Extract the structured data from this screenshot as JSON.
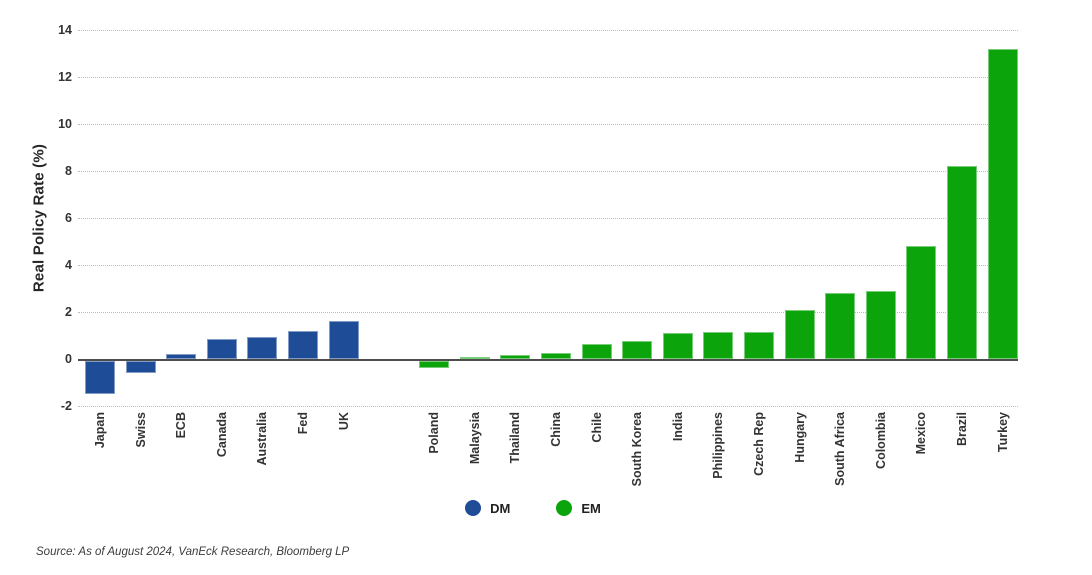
{
  "figure": {
    "y_axis_title": "Real Policy Rate (%)",
    "source_note": "Source: As of August 2024, VanEck Research, Bloomberg LP"
  },
  "legend": {
    "items": [
      {
        "label": "DM",
        "color": "#1e4c96"
      },
      {
        "label": "EM",
        "color": "#0ba40b"
      }
    ]
  },
  "chart_data": {
    "type": "bar",
    "title": "",
    "xlabel": "",
    "ylabel": "Real Policy Rate (%)",
    "ylim": [
      -2,
      14
    ],
    "yticks": [
      14,
      12,
      10,
      8,
      6,
      4,
      2,
      0,
      -2
    ],
    "grid": "horizontal-dotted",
    "legend_position": "bottom-center",
    "series": [
      {
        "name": "DM",
        "color": "#1e4c96",
        "categories": [
          "Japan",
          "Swiss",
          "ECB",
          "Canada",
          "Australia",
          "Fed",
          "UK"
        ],
        "values": [
          -1.4,
          -0.5,
          0.2,
          0.85,
          0.95,
          1.2,
          1.6
        ]
      },
      {
        "name": "EM",
        "color": "#0ba40b",
        "categories": [
          "Poland",
          "Malaysia",
          "Thailand",
          "China",
          "Chile",
          "South Korea",
          "India",
          "Philippines",
          "Czech Rep",
          "Hungary",
          "South Africa",
          "Colombia",
          "Mexico",
          "Brazil",
          "Turkey"
        ],
        "values": [
          -0.3,
          0.1,
          0.15,
          0.25,
          0.65,
          0.75,
          1.1,
          1.15,
          1.15,
          2.1,
          2.8,
          2.9,
          4.8,
          8.2,
          13.2
        ]
      }
    ],
    "annotations": [
      "Source: As of August 2024, VanEck Research, Bloomberg LP"
    ]
  }
}
